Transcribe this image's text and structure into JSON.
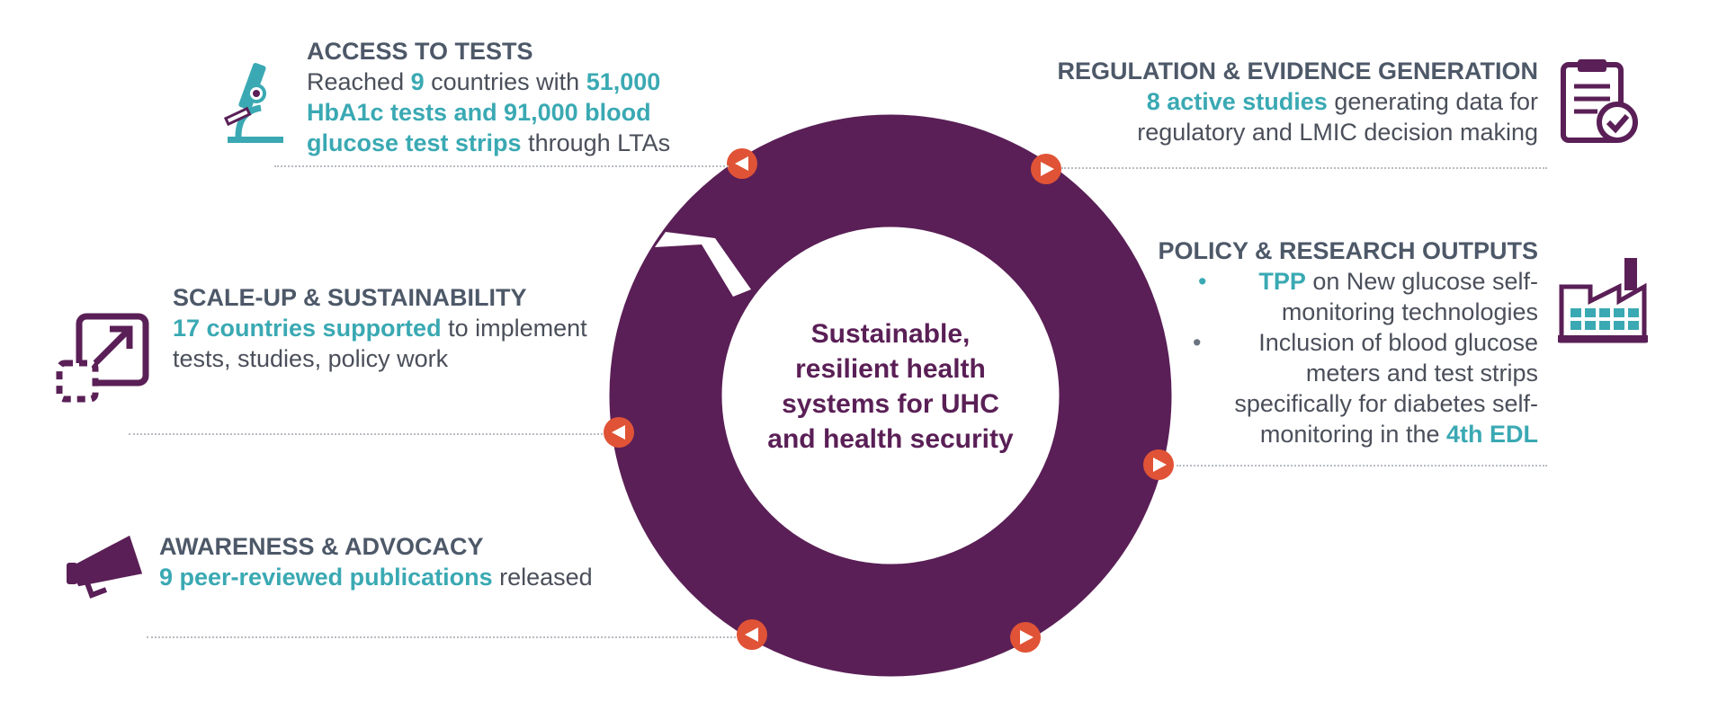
{
  "center": {
    "line1": "Sustainable,",
    "line2": "resilient health",
    "line3": "systems for UHC",
    "line4": "and health security"
  },
  "access": {
    "title": "ACCESS TO TESTS",
    "t1": "Reached ",
    "h1": "9",
    "t2": " countries with ",
    "h2": "51,000",
    "h3": "HbA1c tests and 91,000 blood",
    "h4": "glucose test strips",
    "t3": " through LTAs"
  },
  "scale": {
    "title": "SCALE-UP & SUSTAINABILITY",
    "h1": "17 countries supported",
    "t1": " to implement",
    "t2": "tests, studies, policy work"
  },
  "awareness": {
    "title": "AWARENESS & ADVOCACY",
    "h1": "9 peer-reviewed publications",
    "t1": " released"
  },
  "regulation": {
    "title": "REGULATION & EVIDENCE GENERATION",
    "h1": "8 active studies",
    "t1": " generating data for",
    "t2": "regulatory and LMIC decision making"
  },
  "policy": {
    "title": "POLICY & RESEARCH OUTPUTS",
    "b1_h": "TPP",
    "b1_t1": " on New glucose self-",
    "b1_t2": "monitoring technologies",
    "b2_l1": "Inclusion of blood glucose",
    "b2_l2": "meters and test strips",
    "b2_l3": "specifically for diabetes self-",
    "b2_l4": "monitoring in the ",
    "b2_h": "4th EDL",
    "bullet": "•"
  },
  "colors": {
    "ring": "#5a1f56",
    "highlight": "#3aa9b3",
    "arrow": "#e05336",
    "title": "#4d5868"
  },
  "icons": [
    "microscope-icon",
    "expand-icon",
    "megaphone-icon",
    "clipboard-check-icon",
    "factory-icon",
    "arrow-marker-icon"
  ]
}
